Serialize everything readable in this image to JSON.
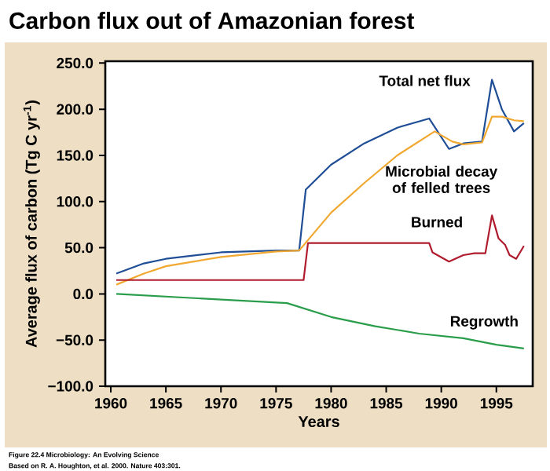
{
  "chart_data": {
    "type": "line",
    "title": "Carbon flux out of Amazonian forest",
    "xlabel": "Years",
    "ylabel": "Average flux of carbon (Tg C yr$^{-1}$)",
    "xlim": [
      1959.5,
      1998.3
    ],
    "xticks": [
      1960,
      1965,
      1970,
      1975,
      1980,
      1985,
      1990,
      1995
    ],
    "ylim": [
      -100,
      252
    ],
    "yticks": [
      {
        "value": -100,
        "label": "−100.0"
      },
      {
        "value": -50,
        "label": "−50.0"
      },
      {
        "value": 0,
        "label": "0.0"
      },
      {
        "value": 50,
        "label": "50.0"
      },
      {
        "value": 100,
        "label": "100.0"
      },
      {
        "value": 150,
        "label": "150.0"
      },
      {
        "value": 200,
        "label": "200.0"
      },
      {
        "value": 250,
        "label": "250.0"
      }
    ],
    "grid": false,
    "legend": false,
    "series": [
      {
        "name": "Total net flux",
        "color": "#1f4e96",
        "x": [
          1960.5,
          1963,
          1965,
          1970,
          1975,
          1977.1,
          1977.7,
          1980,
          1983,
          1986,
          1988.9,
          1990.7,
          1992,
          1993.7,
          1994.6,
          1995.5,
          1996.6,
          1997.5
        ],
        "values": [
          22,
          33,
          38,
          45,
          47,
          47,
          113,
          140,
          163,
          180,
          190,
          157,
          163,
          165,
          232,
          200,
          176,
          185
        ]
      },
      {
        "name": "Microbial decay of felled trees",
        "color": "#f0a830",
        "x": [
          1960.5,
          1963,
          1965,
          1970,
          1975,
          1977.1,
          1980,
          1983,
          1986,
          1989.4,
          1991,
          1992,
          1993.7,
          1994.6,
          1995.5,
          1996.6,
          1997.5
        ],
        "values": [
          10,
          22,
          30,
          40,
          46,
          47,
          88,
          120,
          150,
          176,
          165,
          162,
          164,
          192,
          192,
          188,
          187
        ]
      },
      {
        "name": "Burned",
        "color": "#b01c2e",
        "x": [
          1960.5,
          1977.5,
          1977.9,
          1988.9,
          1989.2,
          1990.7,
          1992,
          1993,
          1994,
          1994.6,
          1995.2,
          1995.8,
          1996.2,
          1996.8,
          1997.5
        ],
        "values": [
          15,
          15,
          55,
          55,
          45,
          35,
          42,
          44,
          44,
          85,
          60,
          53,
          42,
          38,
          52
        ]
      },
      {
        "name": "Regrowth",
        "color": "#2a9d4a",
        "x": [
          1960.5,
          1976,
          1980,
          1984,
          1988,
          1992,
          1995,
          1997.5
        ],
        "values": [
          0,
          -10,
          -25,
          -35,
          -43,
          -48,
          -55,
          -59
        ]
      }
    ],
    "annotations": [
      "Figure 22.4 Microbiology: An Evolving Science",
      "Based on R. A. Houghton, et al. 2000. Nature 403:301."
    ]
  }
}
